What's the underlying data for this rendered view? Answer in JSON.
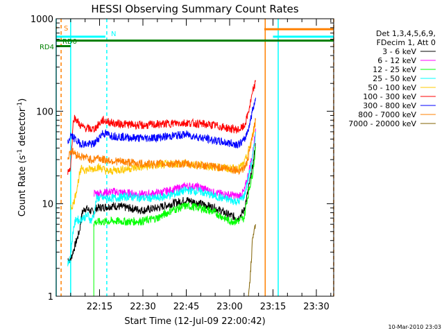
{
  "chart_data": {
    "type": "line",
    "title": "HESSI Observing Summary Count Rates",
    "xlabel": "Start Time (12-Jul-09 22:00:42)",
    "ylabel_main": "Count Rate (s",
    "ylabel_sup1": "-1",
    "ylabel_mid": " detector",
    "ylabel_sup2": "-1",
    "ylabel_end": ")",
    "footer": "10-Mar-2010 23:03",
    "yscale": "log",
    "ylim": [
      1,
      1000
    ],
    "xlim": [
      0,
      96
    ],
    "x_ticks": [
      {
        "x": 15,
        "label": "22:15"
      },
      {
        "x": 30,
        "label": "22:30"
      },
      {
        "x": 45,
        "label": "22:45"
      },
      {
        "x": 60,
        "label": "23:00"
      },
      {
        "x": 75,
        "label": "23:15"
      },
      {
        "x": 90,
        "label": "23:30"
      }
    ],
    "y_ticks": [
      {
        "y": 1,
        "label": "1"
      },
      {
        "y": 10,
        "label": "10"
      },
      {
        "y": 100,
        "label": "100"
      },
      {
        "y": 1000,
        "label": "1000"
      }
    ],
    "legend_header": [
      "Det 1,3,4,5,6,9,",
      "FDecim 1, Att 0"
    ],
    "legend_position": "right",
    "series": [
      {
        "name": "3 - 6 keV",
        "color": "#000000",
        "x": [
          4,
          5,
          8,
          9,
          10,
          13,
          14,
          20,
          25,
          30,
          35,
          40,
          45,
          50,
          55,
          60,
          63,
          65,
          66,
          68,
          69
        ],
        "y": [
          2.5,
          2.5,
          5,
          8,
          9,
          8,
          9,
          9.5,
          9,
          8.5,
          9,
          10,
          11,
          10,
          9,
          7.5,
          7,
          8.5,
          12,
          25,
          45
        ]
      },
      {
        "name": "6 - 12 keV",
        "color": "#ff00ff",
        "x": [
          13,
          14,
          20,
          25,
          30,
          35,
          40,
          45,
          50,
          55,
          60,
          63,
          65,
          66,
          68,
          69
        ],
        "y": [
          13,
          13,
          13.5,
          13,
          12.5,
          13,
          14,
          15.5,
          15,
          13,
          12.5,
          12,
          13.5,
          18,
          35,
          65
        ]
      },
      {
        "name": "12 - 25 keV",
        "color": "#00ff00",
        "x": [
          0,
          13,
          13.01,
          20,
          25,
          30,
          35,
          40,
          45,
          50,
          55,
          60,
          63,
          65,
          66,
          68,
          69
        ],
        "y": [
          1,
          1,
          6.3,
          6.5,
          6.4,
          6.5,
          7,
          8.5,
          9.5,
          9,
          8,
          6.5,
          6.5,
          7,
          11,
          22,
          40
        ]
      },
      {
        "name": "25 - 50 keV",
        "color": "#00ffff",
        "x": [
          4,
          5,
          5.5,
          6,
          7,
          8,
          9,
          10,
          11,
          12,
          13,
          14,
          20,
          25,
          30,
          35,
          40,
          45,
          50,
          55,
          60,
          63,
          65,
          66,
          68,
          69
        ],
        "y": [
          2.2,
          2.8,
          4,
          5.5,
          7,
          6.5,
          7,
          7.2,
          7.5,
          6.5,
          7.5,
          11.5,
          11.5,
          12,
          11.5,
          11.5,
          12.5,
          14,
          13.5,
          12,
          11,
          10.5,
          12,
          16,
          32,
          60
        ]
      },
      {
        "name": "50 - 100 keV",
        "color": "#ffc800",
        "x": [
          5,
          6,
          7,
          8,
          9,
          10,
          13,
          14,
          16,
          18,
          20,
          25,
          30,
          35,
          40,
          45,
          50,
          55,
          60,
          63,
          65,
          66,
          68,
          69
        ],
        "y": [
          9,
          10,
          14,
          20,
          25,
          23,
          24,
          25,
          24,
          22,
          23,
          24,
          25,
          26,
          27,
          27,
          26,
          25,
          24,
          24,
          27,
          33,
          55,
          80
        ]
      },
      {
        "name": "100 - 300 keV",
        "color": "#ff0000",
        "x": [
          4,
          5,
          6,
          7,
          8,
          9,
          10,
          11,
          12,
          13,
          14,
          16,
          20,
          25,
          30,
          35,
          40,
          45,
          50,
          55,
          60,
          63,
          65,
          66,
          67,
          68,
          69
        ],
        "y": [
          22,
          25,
          85,
          82,
          72,
          68,
          66,
          65,
          64,
          64,
          68,
          80,
          74,
          72,
          70,
          72,
          74,
          75,
          73,
          70,
          65,
          63,
          68,
          85,
          115,
          160,
          210
        ]
      },
      {
        "name": "300 - 800 keV",
        "color": "#0000ff",
        "x": [
          4,
          5,
          6,
          7,
          8,
          9,
          10,
          11,
          12,
          13,
          14,
          16,
          20,
          25,
          30,
          35,
          40,
          45,
          50,
          55,
          60,
          63,
          65,
          66,
          67,
          68,
          69
        ],
        "y": [
          45,
          55,
          52,
          48,
          45,
          45,
          44,
          44,
          44,
          44,
          48,
          58,
          54,
          52,
          51,
          52,
          54,
          56,
          52,
          48,
          45,
          44,
          48,
          58,
          75,
          105,
          140
        ]
      },
      {
        "name": "800 - 7000 keV",
        "color": "#ff8000",
        "x": [
          4,
          5,
          6,
          7,
          8,
          9,
          10,
          11,
          12,
          13,
          14,
          16,
          20,
          25,
          30,
          35,
          40,
          45,
          50,
          55,
          60,
          63,
          65,
          66,
          67,
          68,
          69
        ],
        "y": [
          30,
          38,
          36,
          34,
          33,
          32,
          32,
          31,
          30,
          30,
          32,
          30,
          29,
          28,
          27,
          27,
          27,
          27,
          26,
          25,
          24,
          23,
          24,
          28,
          38,
          55,
          80
        ]
      },
      {
        "name": "7000 - 20000 keV",
        "color": "#806000",
        "x": [
          66.5,
          67,
          67.5,
          68,
          68.5,
          69
        ],
        "y": [
          1,
          1.5,
          2.5,
          4.5,
          5.5,
          6
        ]
      }
    ],
    "flags": [
      {
        "label": "S",
        "color": "#ff8000",
        "y": 800,
        "x1": 0,
        "x2": 0.3
      },
      {
        "label": "N",
        "color": "#00ffff",
        "y": 640,
        "x1": 0,
        "x2": 17
      },
      {
        "label": "RD0",
        "color": "#008000",
        "y": 580,
        "x1": 0,
        "x2": 96
      },
      {
        "label": "RD4",
        "color": "#008000",
        "y": 505,
        "x1": 0,
        "x2": 5
      }
    ],
    "flag_segments": [
      {
        "color": "#ff8000",
        "y": 770,
        "x1": 72,
        "x2": 96
      },
      {
        "color": "#00ffff",
        "y": 640,
        "x1": 75,
        "x2": 96
      }
    ],
    "vlines": [
      {
        "x": 1.7,
        "color": "#ff8000",
        "style": "dashed"
      },
      {
        "x": 96,
        "color": "#ff8000",
        "style": "dashed"
      },
      {
        "x": 17.5,
        "color": "#00ffff",
        "style": "dashed"
      },
      {
        "x": 0,
        "color": "#00ffff",
        "style": "solid"
      },
      {
        "x": 5,
        "color": "#00ffff",
        "style": "solid"
      },
      {
        "x": 76.8,
        "color": "#00ffff",
        "style": "solid"
      },
      {
        "x": 72.3,
        "color": "#ff8000",
        "style": "solid"
      }
    ]
  }
}
